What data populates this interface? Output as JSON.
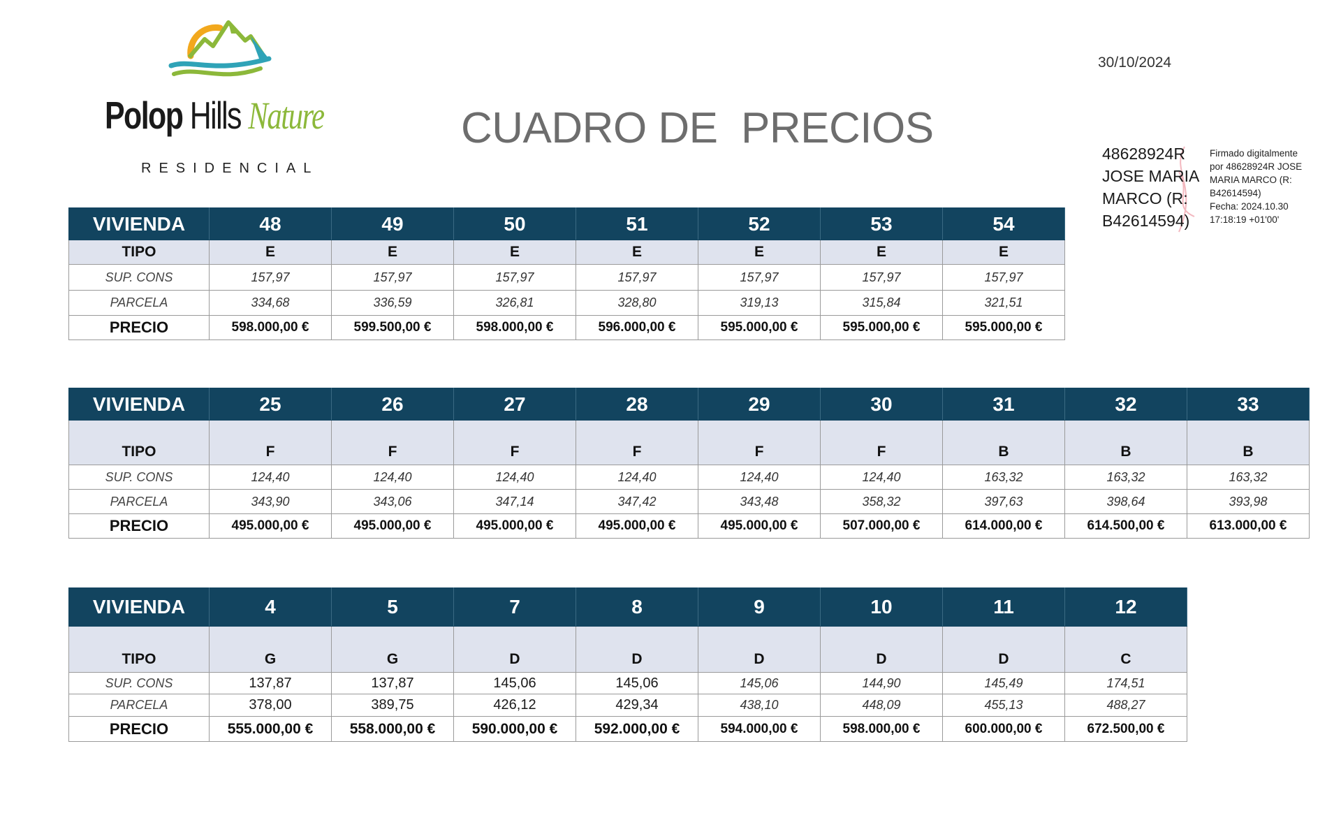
{
  "brand": {
    "name_part1": "Polop",
    "name_part2": " Hills ",
    "name_part3": "Nature",
    "tagline": "RESIDENCIAL"
  },
  "document": {
    "title": "CUADRO DE  PRECIOS",
    "date": "30/10/2024"
  },
  "signature": {
    "name_lines": [
      "48628924R",
      "JOSE MARIA",
      "MARCO (R:",
      "B42614594)"
    ],
    "note_lines": [
      "Firmado digitalmente",
      "por 48628924R JOSE",
      "MARIA MARCO (R:",
      "B42614594)",
      "Fecha: 2024.10.30",
      "17:18:19 +01'00'"
    ]
  },
  "row_labels": {
    "vivienda": "VIVIENDA",
    "tipo": "TIPO",
    "sup_cons": "SUP. CONS",
    "parcela": "PARCELA",
    "precio": "PRECIO"
  },
  "tables": [
    {
      "viviendas": [
        "48",
        "49",
        "50",
        "51",
        "52",
        "53",
        "54"
      ],
      "tipo": [
        "E",
        "E",
        "E",
        "E",
        "E",
        "E",
        "E"
      ],
      "sup_cons": [
        "157,97",
        "157,97",
        "157,97",
        "157,97",
        "157,97",
        "157,97",
        "157,97"
      ],
      "parcela": [
        "334,68",
        "336,59",
        "326,81",
        "328,80",
        "319,13",
        "315,84",
        "321,51"
      ],
      "precio": [
        "598.000,00 €",
        "599.500,00 €",
        "598.000,00 €",
        "596.000,00 €",
        "595.000,00 €",
        "595.000,00 €",
        "595.000,00 €"
      ]
    },
    {
      "viviendas": [
        "25",
        "26",
        "27",
        "28",
        "29",
        "30",
        "31",
        "32",
        "33"
      ],
      "tipo": [
        "F",
        "F",
        "F",
        "F",
        "F",
        "F",
        "B",
        "B",
        "B"
      ],
      "sup_cons": [
        "124,40",
        "124,40",
        "124,40",
        "124,40",
        "124,40",
        "124,40",
        "163,32",
        "163,32",
        "163,32"
      ],
      "parcela": [
        "343,90",
        "343,06",
        "347,14",
        "347,42",
        "343,48",
        "358,32",
        "397,63",
        "398,64",
        "393,98"
      ],
      "precio": [
        "495.000,00 €",
        "495.000,00 €",
        "495.000,00 €",
        "495.000,00 €",
        "495.000,00 €",
        "507.000,00 €",
        "614.000,00 €",
        "614.500,00 €",
        "613.000,00 €"
      ]
    },
    {
      "viviendas": [
        "4",
        "5",
        "7",
        "8",
        "9",
        "10",
        "11",
        "12"
      ],
      "tipo": [
        "G",
        "G",
        "D",
        "D",
        "D",
        "D",
        "D",
        "C"
      ],
      "sup_cons": [
        "137,87",
        "137,87",
        "145,06",
        "145,06",
        "145,06",
        "144,90",
        "145,49",
        "174,51"
      ],
      "parcela": [
        "378,00",
        "389,75",
        "426,12",
        "429,34",
        "438,10",
        "448,09",
        "455,13",
        "488,27"
      ],
      "precio": [
        "555.000,00 €",
        "558.000,00 €",
        "590.000,00 €",
        "592.000,00 €",
        "594.000,00 €",
        "598.000,00 €",
        "600.000,00 €",
        "672.500,00 €"
      ]
    }
  ],
  "colors": {
    "header_bg": "#12445f",
    "tipo_bg": "#dfe3ee",
    "title_gray": "#6d6d6d",
    "brand_green": "#8cb83a"
  }
}
